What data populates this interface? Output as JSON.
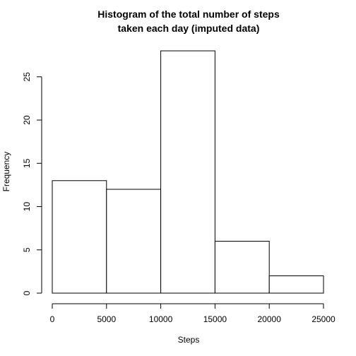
{
  "chart_data": {
    "type": "bar",
    "title_line1": "Histogram of the total number of steps",
    "title_line2": "taken each day (imputed data)",
    "xlabel": "Steps",
    "ylabel": "Frequency",
    "bins": [
      {
        "start": 0,
        "end": 5000,
        "count": 13
      },
      {
        "start": 5000,
        "end": 10000,
        "count": 12
      },
      {
        "start": 10000,
        "end": 15000,
        "count": 28
      },
      {
        "start": 15000,
        "end": 20000,
        "count": 6
      },
      {
        "start": 20000,
        "end": 25000,
        "count": 2
      }
    ],
    "xlim": [
      0,
      25000
    ],
    "ylim": [
      0,
      28
    ],
    "x_ticks": [
      0,
      5000,
      10000,
      15000,
      20000,
      25000
    ],
    "y_ticks": [
      0,
      5,
      10,
      15,
      20,
      25
    ],
    "grid": false,
    "bar_fill": "#ffffff",
    "bar_stroke": "#000000"
  }
}
